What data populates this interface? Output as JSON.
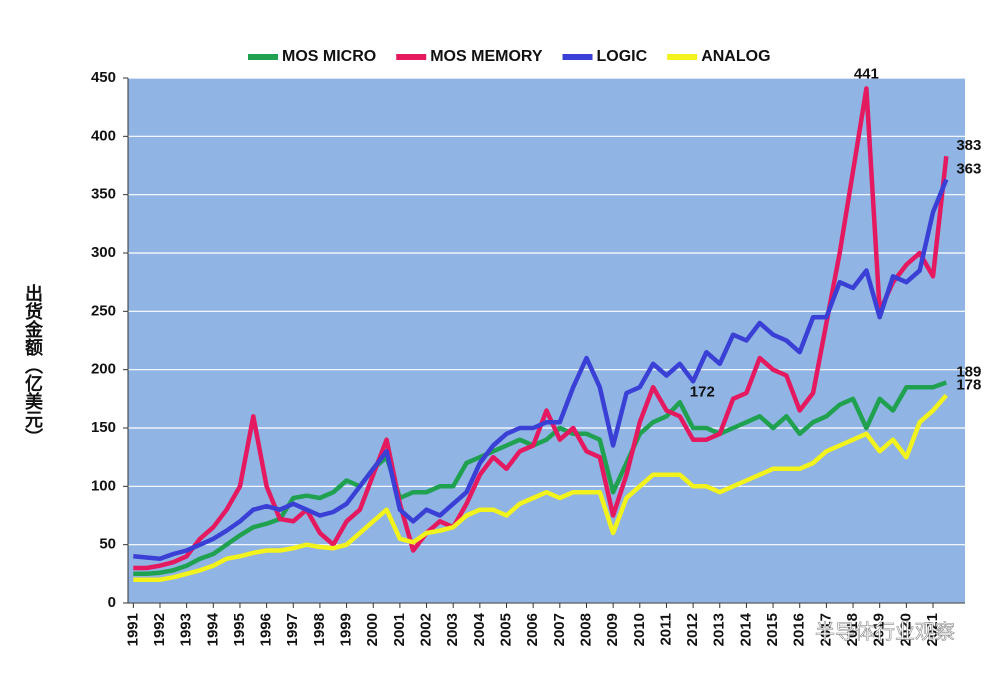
{
  "chart_data": {
    "type": "line",
    "y_label": "出货金额（亿美元）",
    "watermark": "半导体行业观察",
    "x": [
      1991,
      1991.5,
      1992,
      1992.5,
      1993,
      1993.5,
      1994,
      1994.5,
      1995,
      1995.5,
      1996,
      1996.5,
      1997,
      1997.5,
      1998,
      1998.5,
      1999,
      1999.5,
      2000,
      2000.5,
      2001,
      2001.5,
      2002,
      2002.5,
      2003,
      2003.5,
      2004,
      2004.5,
      2005,
      2005.5,
      2006,
      2006.5,
      2007,
      2007.5,
      2008,
      2008.5,
      2009,
      2009.5,
      2010,
      2010.5,
      2011,
      2011.5,
      2012,
      2012.5,
      2013,
      2013.5,
      2014,
      2014.5,
      2015,
      2015.5,
      2016,
      2016.5,
      2017,
      2017.5,
      2018,
      2018.5,
      2019,
      2019.5,
      2020,
      2020.5,
      2021,
      2021.5
    ],
    "series": [
      {
        "name": "MOS MICRO",
        "color": "#1fa150",
        "values": [
          25,
          25,
          26,
          28,
          32,
          38,
          42,
          50,
          58,
          65,
          68,
          72,
          90,
          92,
          90,
          95,
          105,
          100,
          115,
          125,
          90,
          95,
          95,
          100,
          100,
          120,
          125,
          130,
          135,
          140,
          135,
          140,
          150,
          145,
          145,
          140,
          95,
          120,
          145,
          155,
          160,
          172,
          150,
          150,
          145,
          150,
          155,
          160,
          150,
          160,
          145,
          155,
          160,
          170,
          175,
          150,
          175,
          165,
          185,
          185,
          185,
          189
        ]
      },
      {
        "name": "MOS MEMORY",
        "color": "#e4195f",
        "values": [
          30,
          30,
          32,
          35,
          40,
          55,
          65,
          80,
          100,
          160,
          100,
          72,
          70,
          80,
          60,
          50,
          70,
          80,
          110,
          140,
          85,
          45,
          60,
          70,
          65,
          85,
          110,
          125,
          115,
          130,
          135,
          165,
          140,
          150,
          130,
          125,
          75,
          110,
          155,
          185,
          165,
          160,
          140,
          140,
          145,
          175,
          180,
          210,
          200,
          195,
          165,
          180,
          240,
          300,
          370,
          441,
          250,
          275,
          290,
          300,
          280,
          383
        ]
      },
      {
        "name": "LOGIC",
        "color": "#3a3fd6",
        "values": [
          40,
          39,
          38,
          42,
          45,
          50,
          55,
          62,
          70,
          80,
          83,
          80,
          85,
          80,
          75,
          78,
          85,
          100,
          115,
          130,
          80,
          70,
          80,
          75,
          85,
          95,
          120,
          135,
          145,
          150,
          150,
          155,
          155,
          185,
          210,
          185,
          135,
          180,
          185,
          205,
          195,
          205,
          190,
          215,
          205,
          230,
          225,
          240,
          230,
          225,
          215,
          245,
          245,
          275,
          270,
          285,
          245,
          280,
          275,
          285,
          335,
          363
        ]
      },
      {
        "name": "ANALOG",
        "color": "#f2f21c",
        "values": [
          20,
          20,
          20,
          22,
          25,
          28,
          32,
          38,
          40,
          43,
          45,
          45,
          47,
          50,
          48,
          47,
          50,
          60,
          70,
          80,
          55,
          52,
          60,
          62,
          65,
          75,
          80,
          80,
          75,
          85,
          90,
          95,
          90,
          95,
          95,
          95,
          60,
          90,
          100,
          110,
          110,
          110,
          100,
          100,
          95,
          100,
          105,
          110,
          115,
          115,
          115,
          120,
          130,
          135,
          140,
          145,
          130,
          140,
          125,
          155,
          165,
          178
        ]
      }
    ],
    "annotations": [
      {
        "text": "441",
        "x": 2018.5,
        "y": 441
      },
      {
        "text": "383",
        "x": 2021.5,
        "y": 383
      },
      {
        "text": "363",
        "x": 2021.5,
        "y": 363
      },
      {
        "text": "189",
        "x": 2021.5,
        "y": 189
      },
      {
        "text": "178",
        "x": 2021.5,
        "y": 178
      },
      {
        "text": "172",
        "x": 2011.5,
        "y": 172
      }
    ],
    "xlim": [
      1990.8,
      2022.2
    ],
    "xticks": [
      1991,
      1992,
      1993,
      1994,
      1995,
      1996,
      1997,
      1998,
      1999,
      2000,
      2001,
      2002,
      2003,
      2004,
      2005,
      2006,
      2007,
      2008,
      2009,
      2010,
      2011,
      2012,
      2013,
      2014,
      2015,
      2016,
      2017,
      2018,
      2019,
      2020,
      2021
    ],
    "ylim": [
      0,
      450
    ],
    "yticks": [
      0,
      50,
      100,
      150,
      200,
      250,
      300,
      350,
      400,
      450
    ],
    "grid": true,
    "background": "#90b4e3",
    "legend": "top"
  }
}
